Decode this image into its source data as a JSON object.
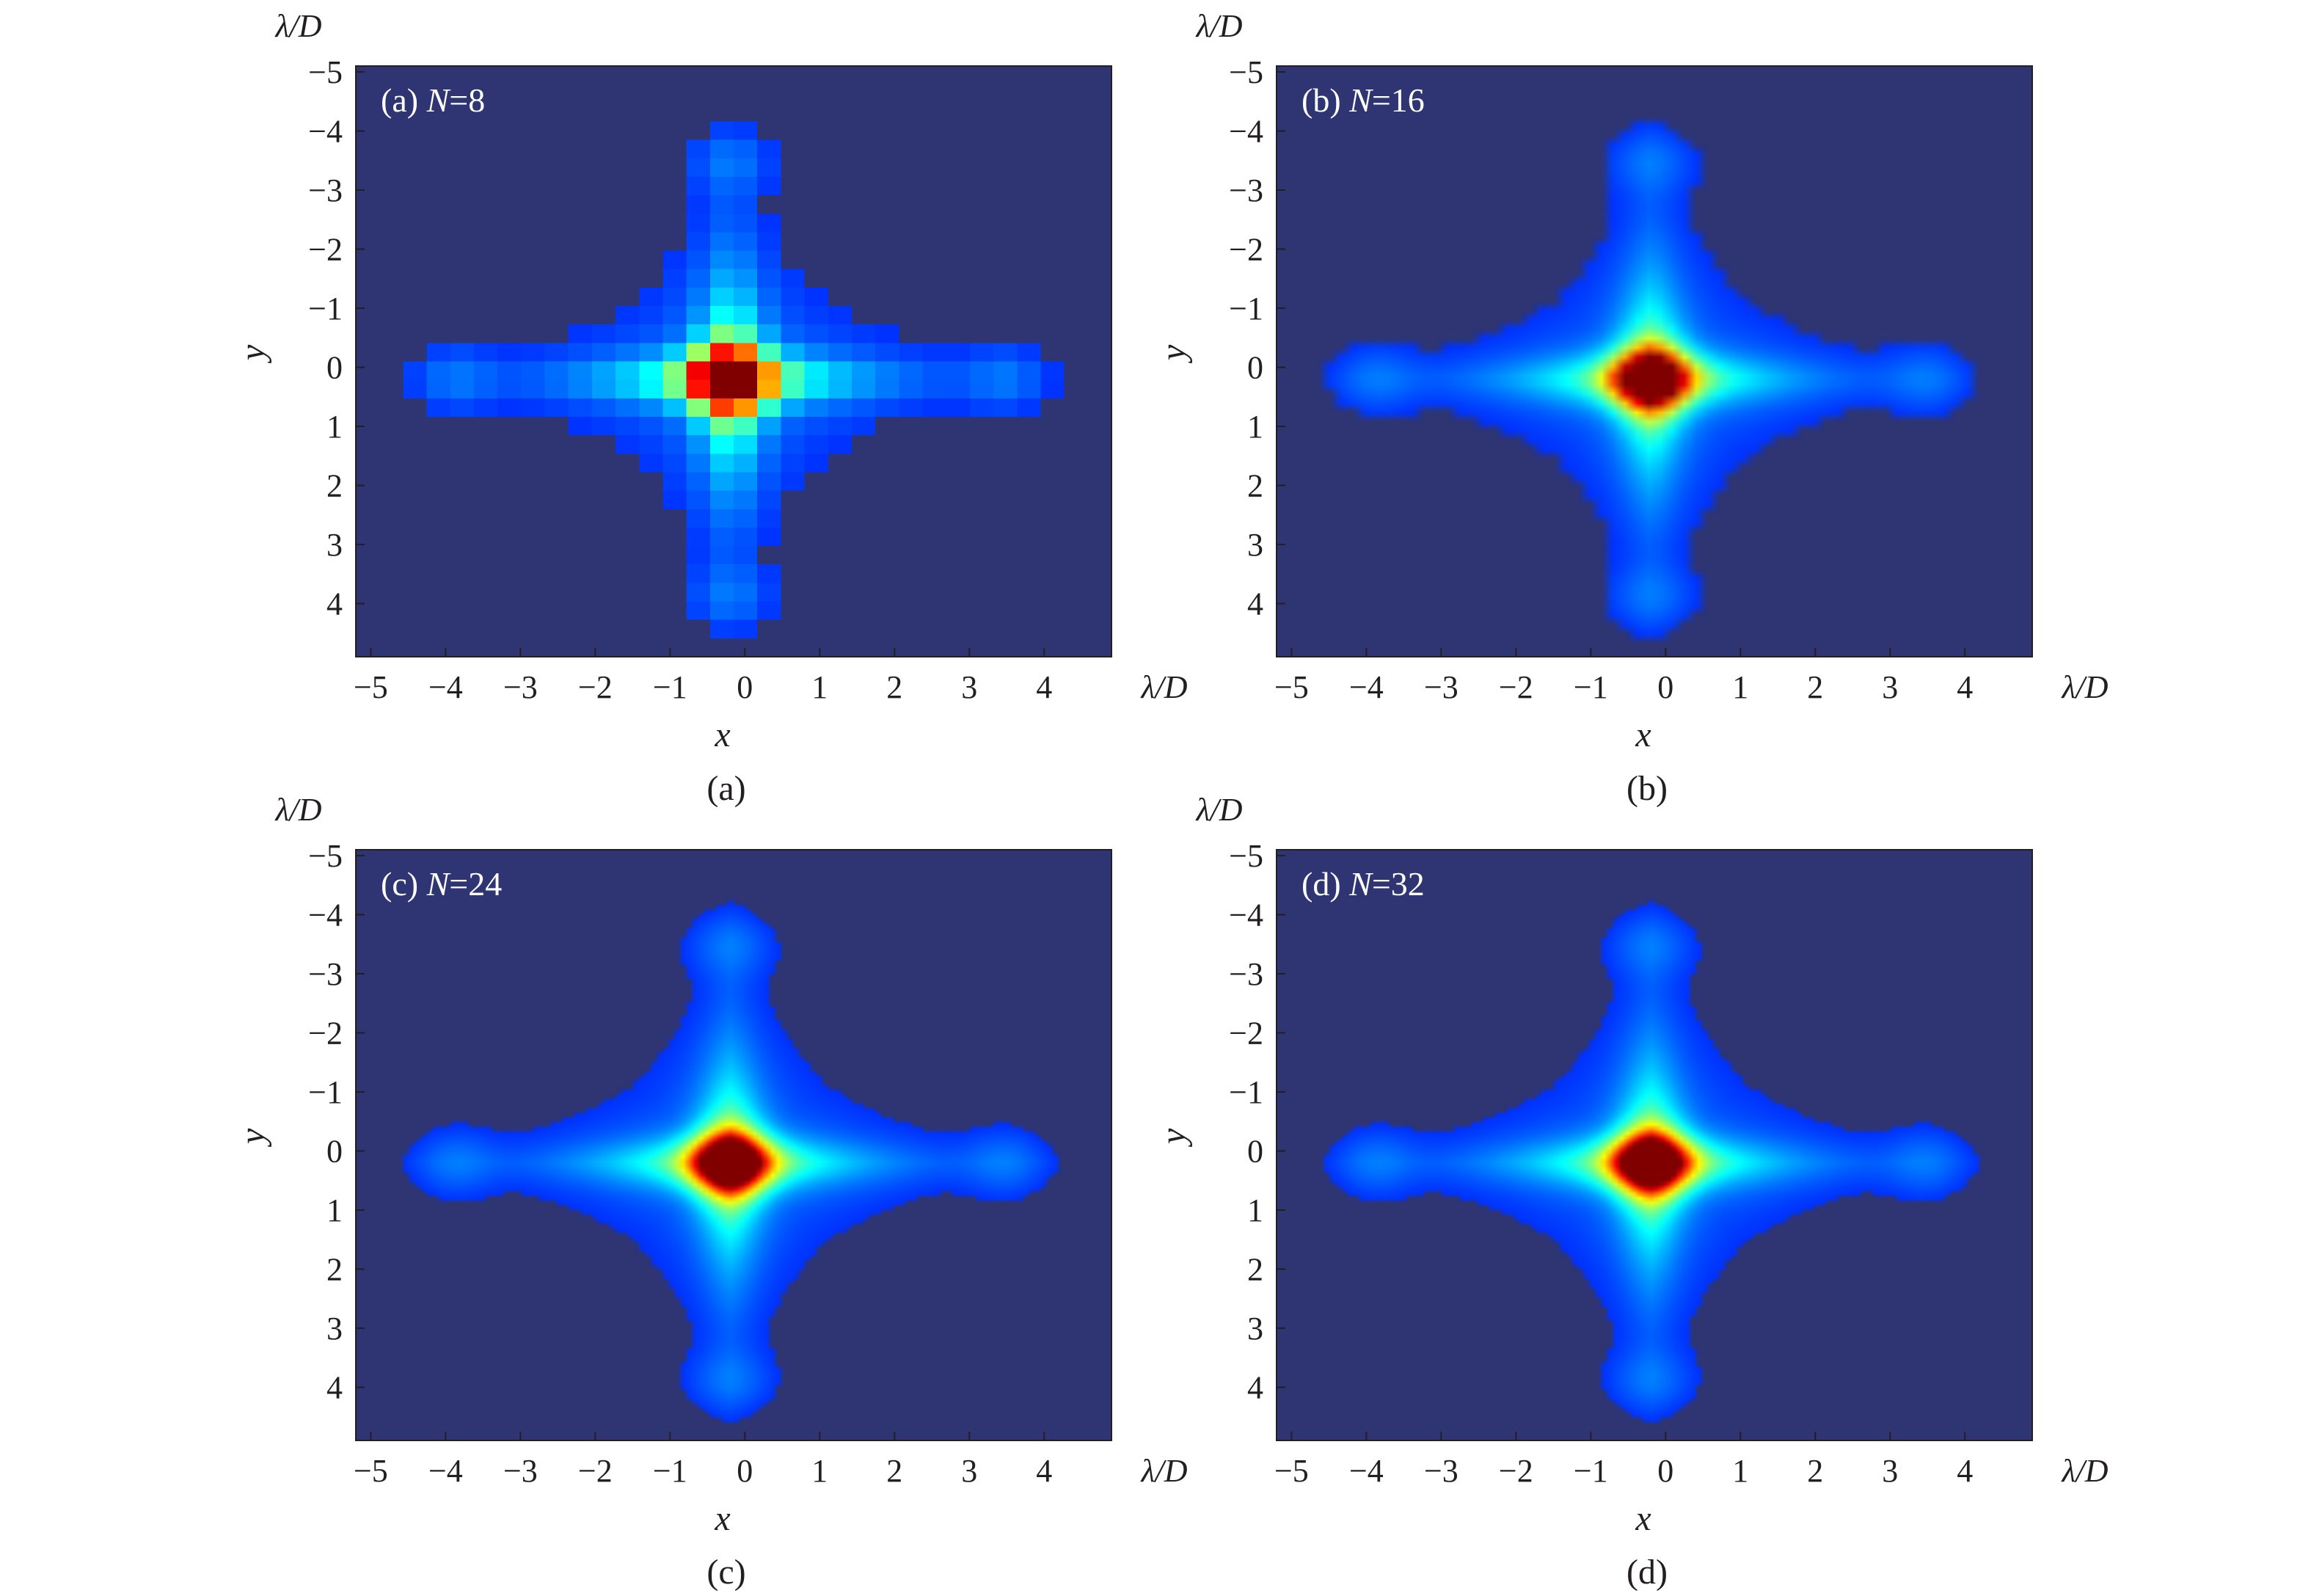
{
  "chart_data": [
    {
      "type": "heatmap",
      "panel_label": "(a)",
      "label_text": "(a) ",
      "label_var": "N",
      "label_value": "=8",
      "N": 8,
      "caption": "(a)",
      "xlabel": "x",
      "ylabel": "y",
      "x_unit_symbol": "λ",
      "x_unit_rest": "/D",
      "y_unit_symbol": "λ",
      "y_unit_rest": "/D",
      "xlim": [
        -5.2,
        4.9
      ],
      "ylim": [
        -5.1,
        4.9
      ],
      "y_inverted": true,
      "xticks": [
        "−5",
        "−4",
        "−3",
        "−2",
        "−1",
        "0",
        "1",
        "2",
        "3",
        "4"
      ],
      "yticks": [
        "−5",
        "−4",
        "−3",
        "−2",
        "−1",
        "0",
        "1",
        "2",
        "3",
        "4"
      ],
      "peak": {
        "x": -0.2,
        "y": 0.2
      },
      "colormap": "jet"
    },
    {
      "type": "heatmap",
      "panel_label": "(b)",
      "label_text": "(b) ",
      "label_var": "N",
      "label_value": "=16",
      "N": 16,
      "caption": "(b)",
      "xlabel": "x",
      "ylabel": "y",
      "x_unit_symbol": "λ",
      "x_unit_rest": "/D",
      "y_unit_symbol": "λ",
      "y_unit_rest": "/D",
      "xlim": [
        -5.2,
        4.9
      ],
      "ylim": [
        -5.1,
        4.9
      ],
      "y_inverted": true,
      "xticks": [
        "−5",
        "−4",
        "−3",
        "−2",
        "−1",
        "0",
        "1",
        "2",
        "3",
        "4"
      ],
      "yticks": [
        "−5",
        "−4",
        "−3",
        "−2",
        "−1",
        "0",
        "1",
        "2",
        "3",
        "4"
      ],
      "peak": {
        "x": -0.2,
        "y": 0.2
      },
      "colormap": "jet"
    },
    {
      "type": "heatmap",
      "panel_label": "(c)",
      "label_text": "(c) ",
      "label_var": "N",
      "label_value": "=24",
      "N": 24,
      "caption": "(c)",
      "xlabel": "x",
      "ylabel": "y",
      "x_unit_symbol": "λ",
      "x_unit_rest": "/D",
      "y_unit_symbol": "λ",
      "y_unit_rest": "/D",
      "xlim": [
        -5.2,
        4.9
      ],
      "ylim": [
        -5.1,
        4.9
      ],
      "y_inverted": true,
      "xticks": [
        "−5",
        "−4",
        "−3",
        "−2",
        "−1",
        "0",
        "1",
        "2",
        "3",
        "4"
      ],
      "yticks": [
        "−5",
        "−4",
        "−3",
        "−2",
        "−1",
        "0",
        "1",
        "2",
        "3",
        "4"
      ],
      "peak": {
        "x": -0.2,
        "y": 0.2
      },
      "colormap": "jet"
    },
    {
      "type": "heatmap",
      "panel_label": "(d)",
      "label_text": "(d) ",
      "label_var": "N",
      "label_value": "=32",
      "N": 32,
      "caption": "(d)",
      "xlabel": "x",
      "ylabel": "y",
      "x_unit_symbol": "λ",
      "x_unit_rest": "/D",
      "y_unit_symbol": "λ",
      "y_unit_rest": "/D",
      "xlim": [
        -5.2,
        4.9
      ],
      "ylim": [
        -5.1,
        4.9
      ],
      "y_inverted": true,
      "xticks": [
        "−5",
        "−4",
        "−3",
        "−2",
        "−1",
        "0",
        "1",
        "2",
        "3",
        "4"
      ],
      "yticks": [
        "−5",
        "−4",
        "−3",
        "−2",
        "−1",
        "0",
        "1",
        "2",
        "3",
        "4"
      ],
      "peak": {
        "x": -0.2,
        "y": 0.2
      },
      "colormap": "jet"
    }
  ],
  "colors": {
    "background": "#2e3572",
    "text": "#231f20",
    "panel_label": "#ffffff"
  }
}
